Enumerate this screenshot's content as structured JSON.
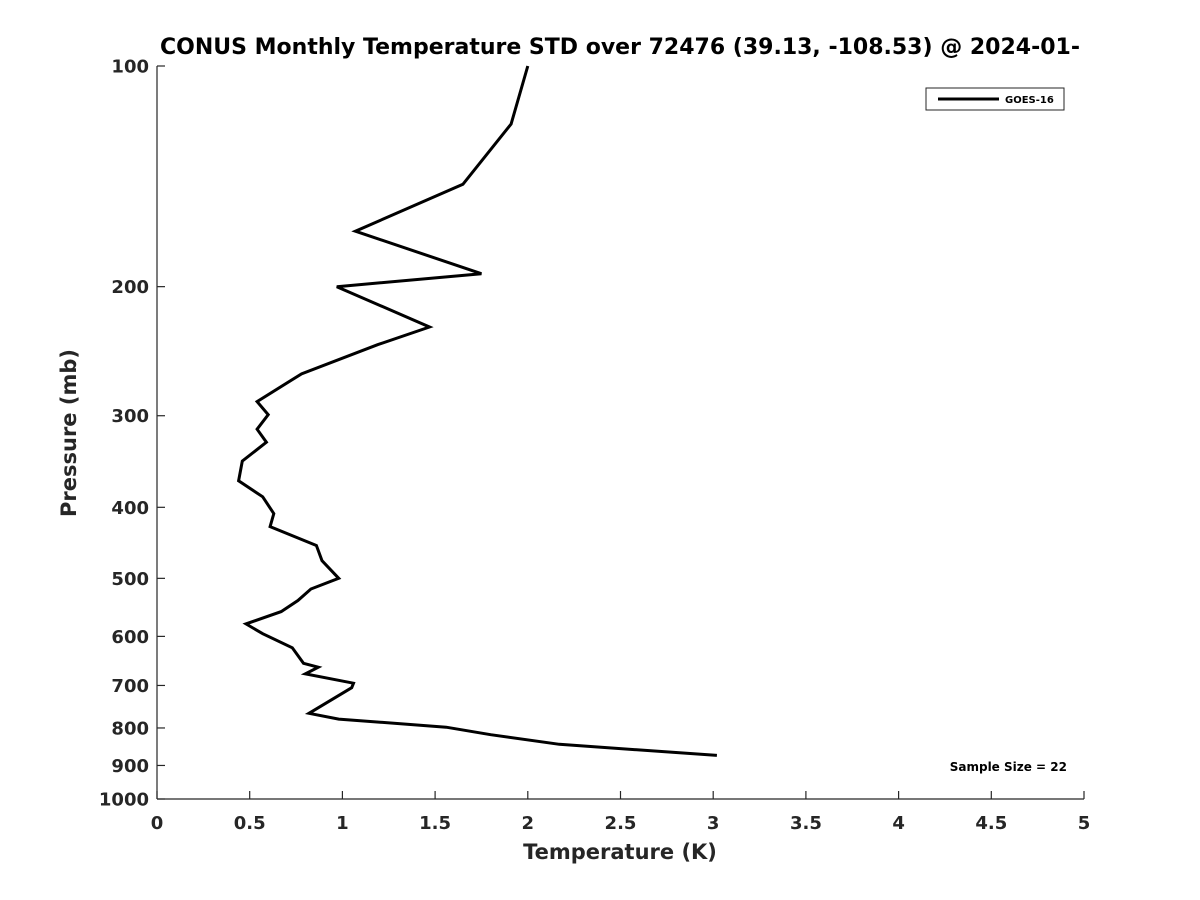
{
  "chart_data": {
    "type": "line",
    "title": "CONUS Monthly Temperature STD over 72476 (39.13, -108.53) @ 2024-01-",
    "xlabel": "Temperature (K)",
    "ylabel": "Pressure (mb)",
    "xlim": [
      0,
      5
    ],
    "ylim": [
      100,
      1000
    ],
    "y_scale": "log",
    "y_reversed": true,
    "x_ticks": [
      "0",
      "0.5",
      "1",
      "1.5",
      "2",
      "2.5",
      "3",
      "3.5",
      "4",
      "4.5",
      "5"
    ],
    "y_ticks": [
      "100",
      "200",
      "300",
      "400",
      "500",
      "600",
      "700",
      "800",
      "900",
      "1000"
    ],
    "grid": false,
    "legend_position": "top-right",
    "annotation": "Sample Size = 22",
    "series": [
      {
        "name": "GOES-16",
        "color": "#000000",
        "points": [
          [
            2.0,
            100
          ],
          [
            1.91,
            120
          ],
          [
            1.65,
            145
          ],
          [
            1.07,
            168
          ],
          [
            1.75,
            192
          ],
          [
            0.97,
            200
          ],
          [
            1.47,
            227
          ],
          [
            1.19,
            240
          ],
          [
            0.78,
            263
          ],
          [
            0.54,
            287
          ],
          [
            0.6,
            299
          ],
          [
            0.54,
            313
          ],
          [
            0.59,
            326
          ],
          [
            0.46,
            346
          ],
          [
            0.44,
            368
          ],
          [
            0.57,
            387
          ],
          [
            0.63,
            408
          ],
          [
            0.61,
            425
          ],
          [
            0.86,
            451
          ],
          [
            0.89,
            473
          ],
          [
            0.98,
            500
          ],
          [
            0.83,
            517
          ],
          [
            0.76,
            536
          ],
          [
            0.67,
            555
          ],
          [
            0.48,
            577
          ],
          [
            0.57,
            595
          ],
          [
            0.73,
            622
          ],
          [
            0.79,
            653
          ],
          [
            0.87,
            661
          ],
          [
            0.8,
            675
          ],
          [
            1.06,
            695
          ],
          [
            1.05,
            705
          ],
          [
            0.82,
            764
          ],
          [
            0.98,
            778
          ],
          [
            1.56,
            798
          ],
          [
            1.8,
            817
          ],
          [
            2.17,
            842
          ],
          [
            3.02,
            872
          ]
        ]
      }
    ]
  }
}
